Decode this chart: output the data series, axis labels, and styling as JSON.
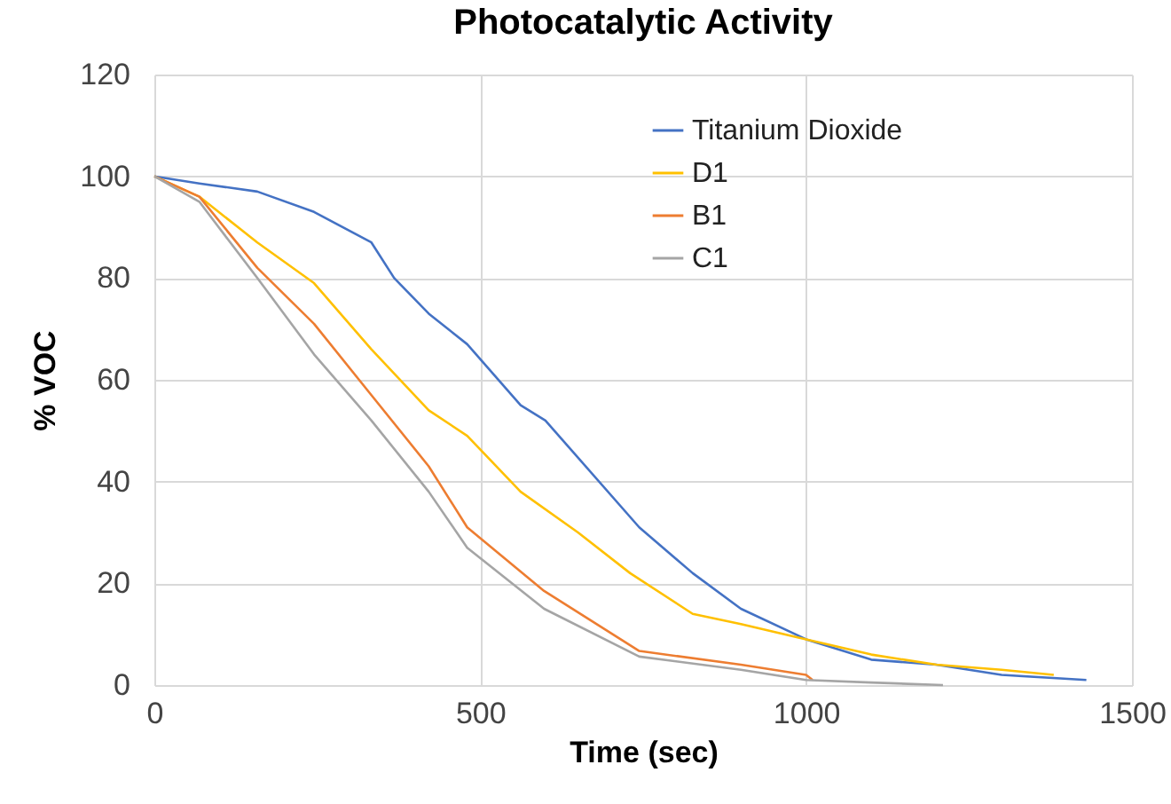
{
  "chart_data": {
    "type": "line",
    "title": "Photocatalytic Activity",
    "xlabel": "Time (sec)",
    "ylabel": "% VOC",
    "xlim": [
      0,
      1500
    ],
    "xticks": [
      0,
      500,
      1000,
      1500
    ],
    "ylim": [
      0,
      120
    ],
    "yticks": [
      0,
      20,
      40,
      60,
      80,
      100,
      120
    ],
    "grid": true,
    "legend": "top right",
    "marker": "none",
    "line_style": "solid",
    "series": [
      {
        "name": "Titanium Dioxide",
        "color": "#4472c4",
        "x": [
          0,
          69,
          158,
          245,
          333,
          368,
          421,
          480,
          562,
          600,
          744,
          826,
          900,
          1000,
          1100,
          1200,
          1300,
          1430
        ],
        "values": [
          100,
          98.6,
          97,
          93,
          87,
          80,
          73,
          67,
          55,
          52,
          31,
          22,
          15,
          9,
          5,
          4,
          2,
          1
        ]
      },
      {
        "name": "D1",
        "color": "#ffc000",
        "x": [
          0,
          69,
          158,
          245,
          333,
          421,
          480,
          562,
          650,
          730,
          826,
          900,
          1000,
          1100,
          1200,
          1300,
          1380
        ],
        "values": [
          100,
          96,
          87,
          79,
          66,
          54,
          49,
          38,
          30,
          22,
          14,
          12,
          9,
          6,
          4,
          3,
          2
        ]
      },
      {
        "name": "B1",
        "color": "#ed7d31",
        "x": [
          0,
          69,
          158,
          245,
          333,
          421,
          480,
          598,
          744,
          900,
          1000,
          1010
        ],
        "values": [
          100,
          96,
          82,
          71,
          57,
          43,
          31,
          18.5,
          6.7,
          4,
          2,
          1
        ]
      },
      {
        "name": "C1",
        "color": "#a5a5a5",
        "x": [
          0,
          69,
          158,
          245,
          333,
          421,
          480,
          598,
          744,
          900,
          1000,
          1100,
          1210
        ],
        "values": [
          100,
          95,
          80,
          65,
          52,
          38,
          27,
          15,
          5.6,
          3,
          1,
          0.5,
          0
        ]
      }
    ]
  }
}
